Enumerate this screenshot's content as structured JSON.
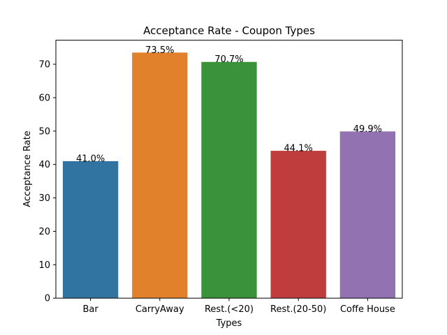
{
  "chart_data": {
    "type": "bar",
    "title": "Acceptance Rate - Coupon Types",
    "xlabel": "Types",
    "ylabel": "Acceptance Rate",
    "categories": [
      "Bar",
      "CarryAway",
      "Rest.(<20)",
      "Rest.(20-50)",
      "Coffe House"
    ],
    "values": [
      41.0,
      73.5,
      70.7,
      44.1,
      49.9
    ],
    "data_labels": [
      "41.0%",
      "73.5%",
      "70.7%",
      "44.1%",
      "49.9%"
    ],
    "colors": [
      "#3274a1",
      "#e1812c",
      "#3a923a",
      "#c03d3e",
      "#9372b2"
    ],
    "ylim": [
      0,
      77.2
    ],
    "yticks": [
      0,
      10,
      20,
      30,
      40,
      50,
      60,
      70
    ],
    "grid": false,
    "legend": "none"
  }
}
